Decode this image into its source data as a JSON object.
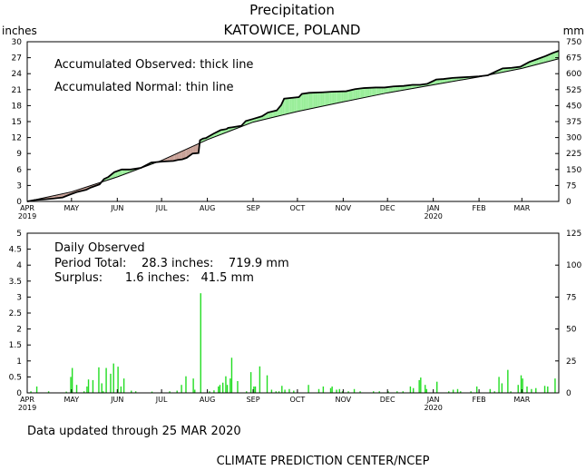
{
  "figure": {
    "title": "Precipitation",
    "location": "KATOWICE, POLAND",
    "updated": "Data updated through 25 MAR 2020",
    "credit": "CLIMATE PREDICTION CENTER/NCEP"
  },
  "chart_data": [
    {
      "type": "area",
      "left_unit": "inches",
      "right_unit": "mm",
      "annotations": [
        "Accumulated Observed: thick line",
        "Accumulated Normal: thin line"
      ],
      "ylim": [
        0,
        30
      ],
      "y_ticks": [
        "0",
        "3",
        "6",
        "9",
        "12",
        "15",
        "18",
        "21",
        "24",
        "27",
        "30"
      ],
      "y2_ticks": [
        "0",
        "75",
        "150",
        "225",
        "300",
        "375",
        "450",
        "525",
        "600",
        "675",
        "750"
      ],
      "x_range_days": [
        0,
        360
      ],
      "month_ticks": [
        {
          "label": "APR",
          "day": 0,
          "year": "2019"
        },
        {
          "label": "MAY",
          "day": 30
        },
        {
          "label": "JUN",
          "day": 61
        },
        {
          "label": "JUL",
          "day": 91
        },
        {
          "label": "AUG",
          "day": 122
        },
        {
          "label": "SEP",
          "day": 153
        },
        {
          "label": "OCT",
          "day": 183
        },
        {
          "label": "NOV",
          "day": 214
        },
        {
          "label": "DEC",
          "day": 244
        },
        {
          "label": "JAN",
          "day": 275,
          "year": "2020"
        },
        {
          "label": "FEB",
          "day": 306
        },
        {
          "label": "MAR",
          "day": 335
        }
      ],
      "surplus_color": "#99ee99",
      "deficit_color": "#c8a096",
      "series": [
        {
          "name": "Accumulated Normal",
          "style": "thin",
          "x": [
            0,
            30,
            61,
            91,
            122,
            153,
            183,
            214,
            244,
            275,
            306,
            335,
            360
          ],
          "y": [
            0,
            1.8,
            4.6,
            7.7,
            11.6,
            14.9,
            16.9,
            18.7,
            20.4,
            21.9,
            23.4,
            25.0,
            26.8
          ]
        },
        {
          "name": "Accumulated Observed",
          "style": "thick",
          "x": [
            0,
            5,
            12,
            18,
            24,
            29,
            34,
            40,
            43,
            49,
            52,
            55,
            59,
            64,
            70,
            77,
            84,
            92,
            99,
            102,
            105,
            108,
            112,
            116,
            117,
            119,
            121,
            126,
            131,
            135,
            136,
            145,
            148,
            153,
            159,
            163,
            169,
            172,
            174,
            184,
            186,
            191,
            200,
            206,
            216,
            222,
            228,
            236,
            242,
            248,
            255,
            261,
            266,
            271,
            277,
            282,
            288,
            294,
            300,
            306,
            312,
            318,
            322,
            328,
            334,
            340,
            345,
            351,
            356,
            360
          ],
          "y": [
            0,
            0.25,
            0.4,
            0.55,
            0.75,
            1.3,
            1.8,
            2.2,
            2.6,
            3.2,
            4.2,
            4.6,
            5.5,
            6.0,
            6.0,
            6.3,
            7.3,
            7.5,
            7.6,
            7.8,
            7.9,
            8.2,
            9.0,
            9.1,
            11.5,
            11.8,
            11.9,
            12.7,
            13.4,
            13.6,
            13.8,
            14.2,
            15.1,
            15.5,
            16.0,
            16.7,
            17.1,
            18.1,
            19.3,
            19.6,
            20.2,
            20.4,
            20.5,
            20.6,
            20.7,
            21.1,
            21.3,
            21.4,
            21.4,
            21.6,
            21.7,
            21.9,
            21.9,
            22.1,
            22.9,
            23.0,
            23.2,
            23.3,
            23.4,
            23.5,
            23.7,
            24.5,
            25.0,
            25.1,
            25.3,
            26.2,
            26.7,
            27.3,
            27.9,
            28.3
          ]
        }
      ]
    },
    {
      "type": "bar",
      "left_unit": "",
      "right_unit": "",
      "ylim": [
        0,
        5
      ],
      "y_ticks": [
        "0",
        "0.5",
        "1",
        "1.5",
        "2",
        "2.5",
        "3",
        "3.5",
        "4",
        "4.5",
        "5"
      ],
      "y2_ticks": [
        "0",
        "25",
        "50",
        "75",
        "100",
        "125"
      ],
      "bar_color": "#22dd22",
      "annotations": [
        "Daily Observed",
        "Period Total:    28.3 inches:    719.9 mm",
        "Surplus:      1.6 inches:   41.5 mm"
      ],
      "series": [
        {
          "name": "Daily Observed",
          "x": [
            2,
            6,
            14,
            26,
            29,
            30,
            33,
            38,
            40,
            41,
            44,
            48,
            50,
            51,
            53,
            56,
            58,
            61,
            63,
            65,
            70,
            73,
            84,
            96,
            101,
            104,
            107,
            112,
            113,
            117,
            123,
            126,
            129,
            130,
            132,
            134,
            135,
            137,
            138,
            142,
            148,
            151,
            153,
            154,
            157,
            162,
            165,
            168,
            170,
            172,
            174,
            177,
            180,
            190,
            197,
            200,
            205,
            206,
            209,
            211,
            213,
            217,
            221,
            225,
            234,
            238,
            244,
            250,
            254,
            259,
            261,
            265,
            266,
            269,
            270,
            277,
            285,
            288,
            291,
            293,
            300,
            304,
            313,
            316,
            319,
            321,
            325,
            327,
            332,
            334,
            335,
            338,
            341,
            344,
            350,
            352,
            357
          ],
          "values": [
            0.05,
            0.2,
            0.05,
            0.04,
            0.5,
            0.78,
            0.25,
            0.05,
            0.2,
            0.42,
            0.4,
            0.8,
            0.3,
            0.05,
            0.78,
            0.6,
            0.92,
            0.82,
            0.2,
            0.45,
            0.07,
            0.05,
            0.04,
            0.05,
            0.07,
            0.25,
            0.52,
            0.45,
            0.1,
            3.12,
            0.05,
            0.08,
            0.2,
            0.25,
            0.32,
            0.52,
            0.25,
            0.45,
            1.1,
            0.37,
            0.05,
            0.65,
            0.2,
            0.2,
            0.83,
            0.55,
            0.1,
            0.05,
            0.05,
            0.22,
            0.1,
            0.12,
            0.07,
            0.25,
            0.12,
            0.2,
            0.15,
            0.2,
            0.1,
            0.12,
            0.05,
            0.05,
            0.12,
            0.05,
            0.05,
            0.05,
            0.05,
            0.05,
            0.05,
            0.2,
            0.15,
            0.4,
            0.48,
            0.25,
            0.12,
            0.35,
            0.05,
            0.1,
            0.12,
            0.05,
            0.05,
            0.2,
            0.12,
            0.05,
            0.5,
            0.3,
            0.72,
            0.05,
            0.25,
            0.55,
            0.45,
            0.2,
            0.12,
            0.15,
            0.22,
            0.2,
            0.45
          ]
        }
      ]
    }
  ]
}
